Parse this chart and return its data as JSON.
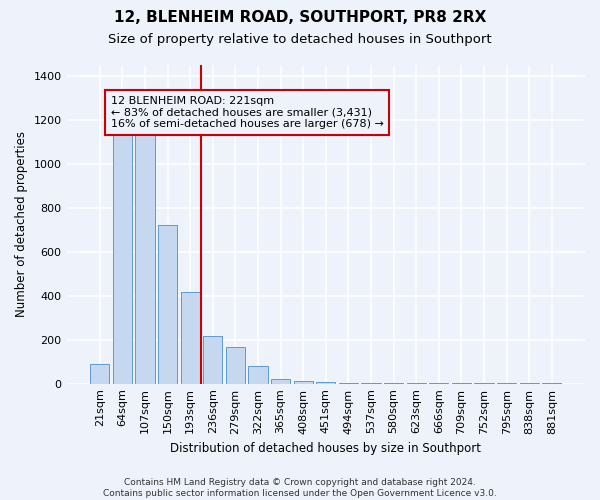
{
  "title1": "12, BLENHEIM ROAD, SOUTHPORT, PR8 2RX",
  "title2": "Size of property relative to detached houses in Southport",
  "xlabel": "Distribution of detached houses by size in Southport",
  "ylabel": "Number of detached properties",
  "footnote": "Contains HM Land Registry data © Crown copyright and database right 2024.\nContains public sector information licensed under the Open Government Licence v3.0.",
  "categories": [
    "21sqm",
    "64sqm",
    "107sqm",
    "150sqm",
    "193sqm",
    "236sqm",
    "279sqm",
    "322sqm",
    "365sqm",
    "408sqm",
    "451sqm",
    "494sqm",
    "537sqm",
    "580sqm",
    "623sqm",
    "666sqm",
    "709sqm",
    "752sqm",
    "795sqm",
    "838sqm",
    "881sqm"
  ],
  "values": [
    90,
    1150,
    1155,
    720,
    415,
    215,
    165,
    80,
    20,
    10,
    8,
    5,
    4,
    3,
    2,
    2,
    2,
    1,
    1,
    1,
    1
  ],
  "bar_color": "#c5d8f0",
  "bar_edge_color": "#5b9bd5",
  "vline_color": "#cc0000",
  "vline_x_index": 4.5,
  "annotation_text": "12 BLENHEIM ROAD: 221sqm\n← 83% of detached houses are smaller (3,431)\n16% of semi-detached houses are larger (678) →",
  "annotation_box_color": "#cc0000",
  "ylim": [
    0,
    1450
  ],
  "yticks": [
    0,
    200,
    400,
    600,
    800,
    1000,
    1200,
    1400
  ],
  "background_color": "#eef2fa",
  "grid_color": "#ffffff",
  "title_fontsize": 11,
  "subtitle_fontsize": 9.5,
  "axis_fontsize": 8.5,
  "tick_fontsize": 8,
  "annot_fontsize": 8
}
